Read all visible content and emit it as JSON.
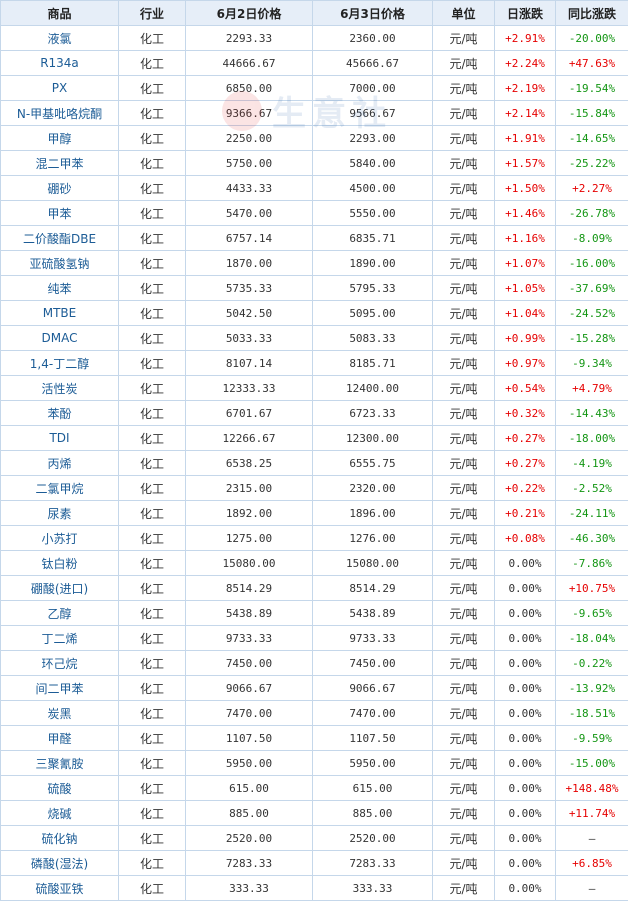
{
  "header": {
    "product": "商品",
    "industry": "行业",
    "price_jun2": "6月2日价格",
    "price_jun3": "6月3日价格",
    "unit": "单位",
    "daily_change": "日涨跌",
    "yoy_change": "同比涨跌"
  },
  "watermark": {
    "brand": "生意社",
    "logo": "shengyishe-logo"
  },
  "colors": {
    "up": "#e60000",
    "down": "#149614",
    "header_bg": "#e6eef8",
    "border": "#c5d7ea",
    "name_link": "#1c5c96"
  },
  "rows": [
    {
      "name": "液氯",
      "industry": "化工",
      "p1": "2293.33",
      "p2": "2360.00",
      "unit": "元/吨",
      "day": "+2.91%",
      "yoy": "-20.00%",
      "day_dir": "up",
      "yoy_dir": "down"
    },
    {
      "name": "R134a",
      "industry": "化工",
      "p1": "44666.67",
      "p2": "45666.67",
      "unit": "元/吨",
      "day": "+2.24%",
      "yoy": "+47.63%",
      "day_dir": "up",
      "yoy_dir": "up"
    },
    {
      "name": "PX",
      "industry": "化工",
      "p1": "6850.00",
      "p2": "7000.00",
      "unit": "元/吨",
      "day": "+2.19%",
      "yoy": "-19.54%",
      "day_dir": "up",
      "yoy_dir": "down"
    },
    {
      "name": "N-甲基吡咯烷酮",
      "industry": "化工",
      "p1": "9366.67",
      "p2": "9566.67",
      "unit": "元/吨",
      "day": "+2.14%",
      "yoy": "-15.84%",
      "day_dir": "up",
      "yoy_dir": "down"
    },
    {
      "name": "甲醇",
      "industry": "化工",
      "p1": "2250.00",
      "p2": "2293.00",
      "unit": "元/吨",
      "day": "+1.91%",
      "yoy": "-14.65%",
      "day_dir": "up",
      "yoy_dir": "down"
    },
    {
      "name": "混二甲苯",
      "industry": "化工",
      "p1": "5750.00",
      "p2": "5840.00",
      "unit": "元/吨",
      "day": "+1.57%",
      "yoy": "-25.22%",
      "day_dir": "up",
      "yoy_dir": "down"
    },
    {
      "name": "硼砂",
      "industry": "化工",
      "p1": "4433.33",
      "p2": "4500.00",
      "unit": "元/吨",
      "day": "+1.50%",
      "yoy": "+2.27%",
      "day_dir": "up",
      "yoy_dir": "up"
    },
    {
      "name": "甲苯",
      "industry": "化工",
      "p1": "5470.00",
      "p2": "5550.00",
      "unit": "元/吨",
      "day": "+1.46%",
      "yoy": "-26.78%",
      "day_dir": "up",
      "yoy_dir": "down"
    },
    {
      "name": "二价酸酯DBE",
      "industry": "化工",
      "p1": "6757.14",
      "p2": "6835.71",
      "unit": "元/吨",
      "day": "+1.16%",
      "yoy": "-8.09%",
      "day_dir": "up",
      "yoy_dir": "down"
    },
    {
      "name": "亚硫酸氢钠",
      "industry": "化工",
      "p1": "1870.00",
      "p2": "1890.00",
      "unit": "元/吨",
      "day": "+1.07%",
      "yoy": "-16.00%",
      "day_dir": "up",
      "yoy_dir": "down"
    },
    {
      "name": "纯苯",
      "industry": "化工",
      "p1": "5735.33",
      "p2": "5795.33",
      "unit": "元/吨",
      "day": "+1.05%",
      "yoy": "-37.69%",
      "day_dir": "up",
      "yoy_dir": "down"
    },
    {
      "name": "MTBE",
      "industry": "化工",
      "p1": "5042.50",
      "p2": "5095.00",
      "unit": "元/吨",
      "day": "+1.04%",
      "yoy": "-24.52%",
      "day_dir": "up",
      "yoy_dir": "down"
    },
    {
      "name": "DMAC",
      "industry": "化工",
      "p1": "5033.33",
      "p2": "5083.33",
      "unit": "元/吨",
      "day": "+0.99%",
      "yoy": "-15.28%",
      "day_dir": "up",
      "yoy_dir": "down"
    },
    {
      "name": "1,4-丁二醇",
      "industry": "化工",
      "p1": "8107.14",
      "p2": "8185.71",
      "unit": "元/吨",
      "day": "+0.97%",
      "yoy": "-9.34%",
      "day_dir": "up",
      "yoy_dir": "down"
    },
    {
      "name": "活性炭",
      "industry": "化工",
      "p1": "12333.33",
      "p2": "12400.00",
      "unit": "元/吨",
      "day": "+0.54%",
      "yoy": "+4.79%",
      "day_dir": "up",
      "yoy_dir": "up"
    },
    {
      "name": "苯酚",
      "industry": "化工",
      "p1": "6701.67",
      "p2": "6723.33",
      "unit": "元/吨",
      "day": "+0.32%",
      "yoy": "-14.43%",
      "day_dir": "up",
      "yoy_dir": "down"
    },
    {
      "name": "TDI",
      "industry": "化工",
      "p1": "12266.67",
      "p2": "12300.00",
      "unit": "元/吨",
      "day": "+0.27%",
      "yoy": "-18.00%",
      "day_dir": "up",
      "yoy_dir": "down"
    },
    {
      "name": "丙烯",
      "industry": "化工",
      "p1": "6538.25",
      "p2": "6555.75",
      "unit": "元/吨",
      "day": "+0.27%",
      "yoy": "-4.19%",
      "day_dir": "up",
      "yoy_dir": "down"
    },
    {
      "name": "二氯甲烷",
      "industry": "化工",
      "p1": "2315.00",
      "p2": "2320.00",
      "unit": "元/吨",
      "day": "+0.22%",
      "yoy": "-2.52%",
      "day_dir": "up",
      "yoy_dir": "down"
    },
    {
      "name": "尿素",
      "industry": "化工",
      "p1": "1892.00",
      "p2": "1896.00",
      "unit": "元/吨",
      "day": "+0.21%",
      "yoy": "-24.11%",
      "day_dir": "up",
      "yoy_dir": "down"
    },
    {
      "name": "小苏打",
      "industry": "化工",
      "p1": "1275.00",
      "p2": "1276.00",
      "unit": "元/吨",
      "day": "+0.08%",
      "yoy": "-46.30%",
      "day_dir": "up",
      "yoy_dir": "down"
    },
    {
      "name": "钛白粉",
      "industry": "化工",
      "p1": "15080.00",
      "p2": "15080.00",
      "unit": "元/吨",
      "day": "0.00%",
      "yoy": "-7.86%",
      "day_dir": "flat",
      "yoy_dir": "down"
    },
    {
      "name": "硼酸(进口)",
      "industry": "化工",
      "p1": "8514.29",
      "p2": "8514.29",
      "unit": "元/吨",
      "day": "0.00%",
      "yoy": "+10.75%",
      "day_dir": "flat",
      "yoy_dir": "up"
    },
    {
      "name": "乙醇",
      "industry": "化工",
      "p1": "5438.89",
      "p2": "5438.89",
      "unit": "元/吨",
      "day": "0.00%",
      "yoy": "-9.65%",
      "day_dir": "flat",
      "yoy_dir": "down"
    },
    {
      "name": "丁二烯",
      "industry": "化工",
      "p1": "9733.33",
      "p2": "9733.33",
      "unit": "元/吨",
      "day": "0.00%",
      "yoy": "-18.04%",
      "day_dir": "flat",
      "yoy_dir": "down"
    },
    {
      "name": "环己烷",
      "industry": "化工",
      "p1": "7450.00",
      "p2": "7450.00",
      "unit": "元/吨",
      "day": "0.00%",
      "yoy": "-0.22%",
      "day_dir": "flat",
      "yoy_dir": "down"
    },
    {
      "name": "间二甲苯",
      "industry": "化工",
      "p1": "9066.67",
      "p2": "9066.67",
      "unit": "元/吨",
      "day": "0.00%",
      "yoy": "-13.92%",
      "day_dir": "flat",
      "yoy_dir": "down"
    },
    {
      "name": "炭黑",
      "industry": "化工",
      "p1": "7470.00",
      "p2": "7470.00",
      "unit": "元/吨",
      "day": "0.00%",
      "yoy": "-18.51%",
      "day_dir": "flat",
      "yoy_dir": "down"
    },
    {
      "name": "甲醛",
      "industry": "化工",
      "p1": "1107.50",
      "p2": "1107.50",
      "unit": "元/吨",
      "day": "0.00%",
      "yoy": "-9.59%",
      "day_dir": "flat",
      "yoy_dir": "down"
    },
    {
      "name": "三聚氰胺",
      "industry": "化工",
      "p1": "5950.00",
      "p2": "5950.00",
      "unit": "元/吨",
      "day": "0.00%",
      "yoy": "-15.00%",
      "day_dir": "flat",
      "yoy_dir": "down"
    },
    {
      "name": "硫酸",
      "industry": "化工",
      "p1": "615.00",
      "p2": "615.00",
      "unit": "元/吨",
      "day": "0.00%",
      "yoy": "+148.48%",
      "day_dir": "flat",
      "yoy_dir": "up"
    },
    {
      "name": "烧碱",
      "industry": "化工",
      "p1": "885.00",
      "p2": "885.00",
      "unit": "元/吨",
      "day": "0.00%",
      "yoy": "+11.74%",
      "day_dir": "flat",
      "yoy_dir": "up"
    },
    {
      "name": "硫化钠",
      "industry": "化工",
      "p1": "2520.00",
      "p2": "2520.00",
      "unit": "元/吨",
      "day": "0.00%",
      "yoy": "—",
      "day_dir": "flat",
      "yoy_dir": "flat"
    },
    {
      "name": "磷酸(湿法)",
      "industry": "化工",
      "p1": "7283.33",
      "p2": "7283.33",
      "unit": "元/吨",
      "day": "0.00%",
      "yoy": "+6.85%",
      "day_dir": "flat",
      "yoy_dir": "up"
    },
    {
      "name": "硫酸亚铁",
      "industry": "化工",
      "p1": "333.33",
      "p2": "333.33",
      "unit": "元/吨",
      "day": "0.00%",
      "yoy": "—",
      "day_dir": "flat",
      "yoy_dir": "flat"
    }
  ]
}
